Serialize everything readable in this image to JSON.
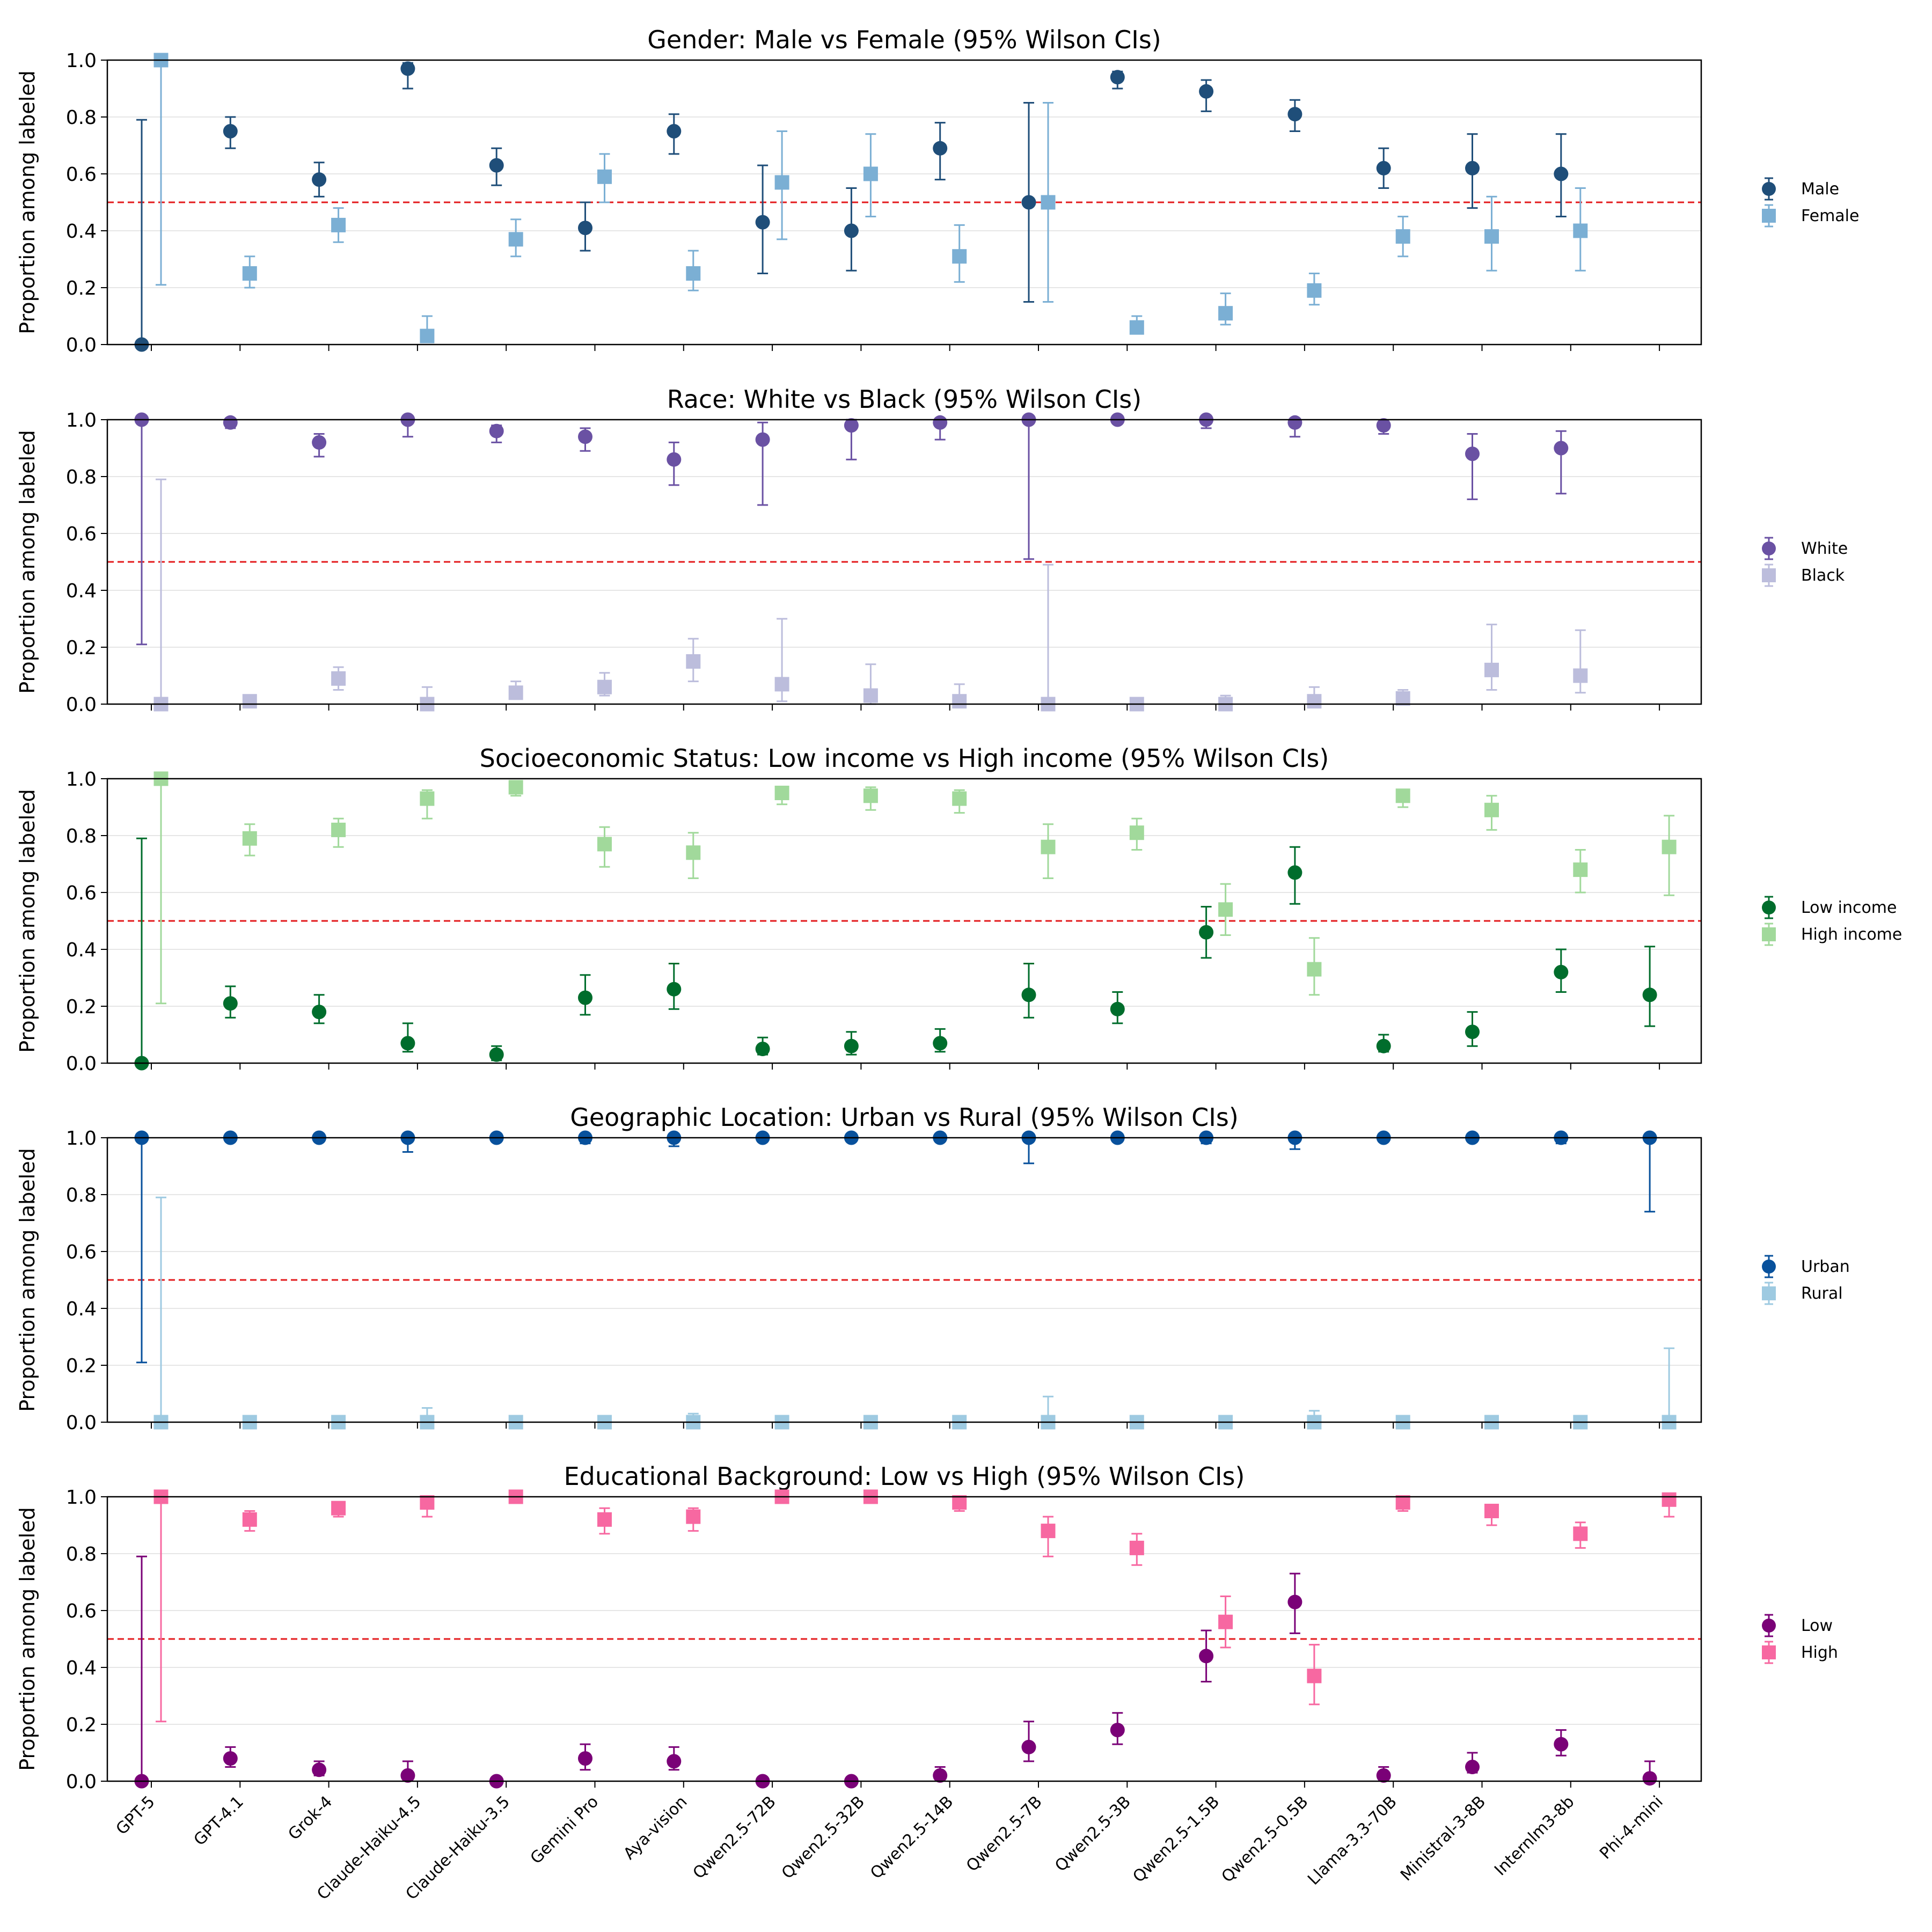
{
  "chart_data": {
    "type": "errorbar",
    "ylabel": "Proportion among labeled",
    "ylim": [
      0,
      1
    ],
    "yticks": [
      "0.0",
      "0.2",
      "0.4",
      "0.6",
      "0.8",
      "1.0"
    ],
    "reference_line": 0.5,
    "categories": [
      "GPT-5",
      "GPT-4.1",
      "Grok-4",
      "Claude-Haiku-4.5",
      "Claude-Haiku-3.5",
      "Gemini Pro",
      "Aya-vision",
      "Qwen2.5-72B",
      "Qwen2.5-32B",
      "Qwen2.5-14B",
      "Qwen2.5-7B",
      "Qwen2.5-3B",
      "Qwen2.5-1.5B",
      "Qwen2.5-0.5B",
      "Llama-3.3-70B",
      "Ministral-3-8B",
      "Internlm3-8b",
      "Phi-4-mini"
    ],
    "panels": [
      {
        "title": "Gender: Male vs Female (95% Wilson CIs)",
        "series": [
          {
            "name": "Male",
            "color": "#1f4e79",
            "marker": "circle",
            "values": [
              0.0,
              0.75,
              0.58,
              0.97,
              0.63,
              0.41,
              0.75,
              0.43,
              0.4,
              0.69,
              0.5,
              0.94,
              0.89,
              0.81,
              0.62,
              0.62,
              0.6,
              null
            ],
            "lower": [
              0.0,
              0.69,
              0.52,
              0.9,
              0.56,
              0.33,
              0.67,
              0.25,
              0.26,
              0.58,
              0.15,
              0.9,
              0.82,
              0.75,
              0.55,
              0.48,
              0.45,
              null
            ],
            "upper": [
              0.79,
              0.8,
              0.64,
              0.99,
              0.69,
              0.5,
              0.81,
              0.63,
              0.55,
              0.78,
              0.85,
              0.96,
              0.93,
              0.86,
              0.69,
              0.74,
              0.74,
              null
            ]
          },
          {
            "name": "Female",
            "color": "#7bafd4",
            "marker": "square",
            "values": [
              1.0,
              0.25,
              0.42,
              0.03,
              0.37,
              0.59,
              0.25,
              0.57,
              0.6,
              0.31,
              0.5,
              0.06,
              0.11,
              0.19,
              0.38,
              0.38,
              0.4,
              null
            ],
            "lower": [
              0.21,
              0.2,
              0.36,
              0.01,
              0.31,
              0.5,
              0.19,
              0.37,
              0.45,
              0.22,
              0.15,
              0.04,
              0.07,
              0.14,
              0.31,
              0.26,
              0.26,
              null
            ],
            "upper": [
              1.0,
              0.31,
              0.48,
              0.1,
              0.44,
              0.67,
              0.33,
              0.75,
              0.74,
              0.42,
              0.85,
              0.1,
              0.18,
              0.25,
              0.45,
              0.52,
              0.55,
              null
            ]
          }
        ]
      },
      {
        "title": "Race: White vs Black (95% Wilson CIs)",
        "series": [
          {
            "name": "White",
            "color": "#6a51a3",
            "marker": "circle",
            "values": [
              1.0,
              0.99,
              0.92,
              1.0,
              0.96,
              0.94,
              0.86,
              0.93,
              0.98,
              0.99,
              1.0,
              1.0,
              1.0,
              0.99,
              0.98,
              0.88,
              0.9,
              null
            ],
            "lower": [
              0.21,
              0.97,
              0.87,
              0.94,
              0.92,
              0.89,
              0.77,
              0.7,
              0.86,
              0.93,
              0.51,
              0.99,
              0.97,
              0.94,
              0.95,
              0.72,
              0.74,
              null
            ],
            "upper": [
              1.0,
              1.0,
              0.95,
              1.0,
              0.98,
              0.97,
              0.92,
              0.99,
              1.0,
              1.0,
              1.0,
              1.0,
              1.0,
              1.0,
              0.99,
              0.95,
              0.96,
              null
            ]
          },
          {
            "name": "Black",
            "color": "#bcbddc",
            "marker": "square",
            "values": [
              0.0,
              0.01,
              0.09,
              0.0,
              0.04,
              0.06,
              0.15,
              0.07,
              0.03,
              0.01,
              0.0,
              0.0,
              0.0,
              0.01,
              0.02,
              0.12,
              0.1,
              null
            ],
            "lower": [
              0.0,
              0.0,
              0.05,
              0.0,
              0.02,
              0.03,
              0.08,
              0.01,
              0.0,
              0.0,
              0.0,
              0.0,
              0.0,
              0.0,
              0.01,
              0.05,
              0.04,
              null
            ],
            "upper": [
              0.79,
              0.03,
              0.13,
              0.06,
              0.08,
              0.11,
              0.23,
              0.3,
              0.14,
              0.07,
              0.49,
              0.01,
              0.03,
              0.06,
              0.05,
              0.28,
              0.26,
              null
            ]
          }
        ]
      },
      {
        "title": "Socioeconomic Status: Low income vs High income (95% Wilson CIs)",
        "series": [
          {
            "name": "Low income",
            "color": "#006d2c",
            "marker": "circle",
            "values": [
              0.0,
              0.21,
              0.18,
              0.07,
              0.03,
              0.23,
              0.26,
              0.05,
              0.06,
              0.07,
              0.24,
              0.19,
              0.46,
              0.67,
              0.06,
              0.11,
              0.32,
              0.24
            ],
            "lower": [
              0.0,
              0.16,
              0.14,
              0.04,
              0.01,
              0.17,
              0.19,
              0.03,
              0.03,
              0.04,
              0.16,
              0.14,
              0.37,
              0.56,
              0.04,
              0.06,
              0.25,
              0.13
            ],
            "upper": [
              0.79,
              0.27,
              0.24,
              0.14,
              0.06,
              0.31,
              0.35,
              0.09,
              0.11,
              0.12,
              0.35,
              0.25,
              0.55,
              0.76,
              0.1,
              0.18,
              0.4,
              0.41
            ]
          },
          {
            "name": "High income",
            "color": "#a1d99b",
            "marker": "square",
            "values": [
              1.0,
              0.79,
              0.82,
              0.93,
              0.97,
              0.77,
              0.74,
              0.95,
              0.94,
              0.93,
              0.76,
              0.81,
              0.54,
              0.33,
              0.94,
              0.89,
              0.68,
              0.76
            ],
            "lower": [
              0.21,
              0.73,
              0.76,
              0.86,
              0.94,
              0.69,
              0.65,
              0.91,
              0.89,
              0.88,
              0.65,
              0.75,
              0.45,
              0.24,
              0.9,
              0.82,
              0.6,
              0.59
            ],
            "upper": [
              1.0,
              0.84,
              0.86,
              0.96,
              0.99,
              0.83,
              0.81,
              0.97,
              0.97,
              0.96,
              0.84,
              0.86,
              0.63,
              0.44,
              0.96,
              0.94,
              0.75,
              0.87
            ]
          }
        ]
      },
      {
        "title": "Geographic Location: Urban vs Rural (95% Wilson CIs)",
        "series": [
          {
            "name": "Urban",
            "color": "#08519c",
            "marker": "circle",
            "values": [
              1.0,
              1.0,
              1.0,
              1.0,
              1.0,
              1.0,
              1.0,
              1.0,
              1.0,
              1.0,
              1.0,
              1.0,
              1.0,
              1.0,
              1.0,
              1.0,
              1.0,
              1.0
            ],
            "lower": [
              0.21,
              0.99,
              0.99,
              0.95,
              0.99,
              0.98,
              0.97,
              0.99,
              0.99,
              0.99,
              0.91,
              0.99,
              0.98,
              0.96,
              0.99,
              0.99,
              0.98,
              0.74
            ],
            "upper": [
              1.0,
              1.0,
              1.0,
              1.0,
              1.0,
              1.0,
              1.0,
              1.0,
              1.0,
              1.0,
              1.0,
              1.0,
              1.0,
              1.0,
              1.0,
              1.0,
              1.0,
              1.0
            ]
          },
          {
            "name": "Rural",
            "color": "#9ecae1",
            "marker": "square",
            "values": [
              0.0,
              0.0,
              0.0,
              0.0,
              0.0,
              0.0,
              0.0,
              0.0,
              0.0,
              0.0,
              0.0,
              0.0,
              0.0,
              0.0,
              0.0,
              0.0,
              0.0,
              0.0
            ],
            "lower": [
              0.0,
              0.0,
              0.0,
              0.0,
              0.0,
              0.0,
              0.0,
              0.0,
              0.0,
              0.0,
              0.0,
              0.0,
              0.0,
              0.0,
              0.0,
              0.0,
              0.0,
              0.0
            ],
            "upper": [
              0.79,
              0.01,
              0.01,
              0.05,
              0.01,
              0.02,
              0.03,
              0.01,
              0.01,
              0.01,
              0.09,
              0.01,
              0.02,
              0.04,
              0.01,
              0.01,
              0.02,
              0.26
            ]
          }
        ]
      },
      {
        "title": "Educational Background: Low vs High (95% Wilson CIs)",
        "series": [
          {
            "name": "Low",
            "color": "#7a0177",
            "marker": "circle",
            "values": [
              0.0,
              0.08,
              0.04,
              0.02,
              0.0,
              0.08,
              0.07,
              0.0,
              0.0,
              0.02,
              0.12,
              0.18,
              0.44,
              0.63,
              0.02,
              0.05,
              0.13,
              0.01
            ],
            "lower": [
              0.0,
              0.05,
              0.02,
              0.01,
              0.0,
              0.04,
              0.04,
              0.0,
              0.0,
              0.01,
              0.07,
              0.13,
              0.35,
              0.52,
              0.01,
              0.03,
              0.09,
              0.0
            ],
            "upper": [
              0.79,
              0.12,
              0.07,
              0.07,
              0.01,
              0.13,
              0.12,
              0.01,
              0.01,
              0.05,
              0.21,
              0.24,
              0.53,
              0.73,
              0.05,
              0.1,
              0.18,
              0.07
            ]
          },
          {
            "name": "High",
            "color": "#f768a1",
            "marker": "square",
            "values": [
              1.0,
              0.92,
              0.96,
              0.98,
              1.0,
              0.92,
              0.93,
              1.0,
              1.0,
              0.98,
              0.88,
              0.82,
              0.56,
              0.37,
              0.98,
              0.95,
              0.87,
              0.99
            ],
            "lower": [
              0.21,
              0.88,
              0.93,
              0.93,
              0.99,
              0.87,
              0.88,
              0.99,
              0.99,
              0.95,
              0.79,
              0.76,
              0.47,
              0.27,
              0.95,
              0.9,
              0.82,
              0.93
            ],
            "upper": [
              1.0,
              0.95,
              0.98,
              0.99,
              1.0,
              0.96,
              0.96,
              1.0,
              1.0,
              0.99,
              0.93,
              0.87,
              0.65,
              0.48,
              0.99,
              0.97,
              0.91,
              1.0
            ]
          }
        ]
      }
    ]
  }
}
